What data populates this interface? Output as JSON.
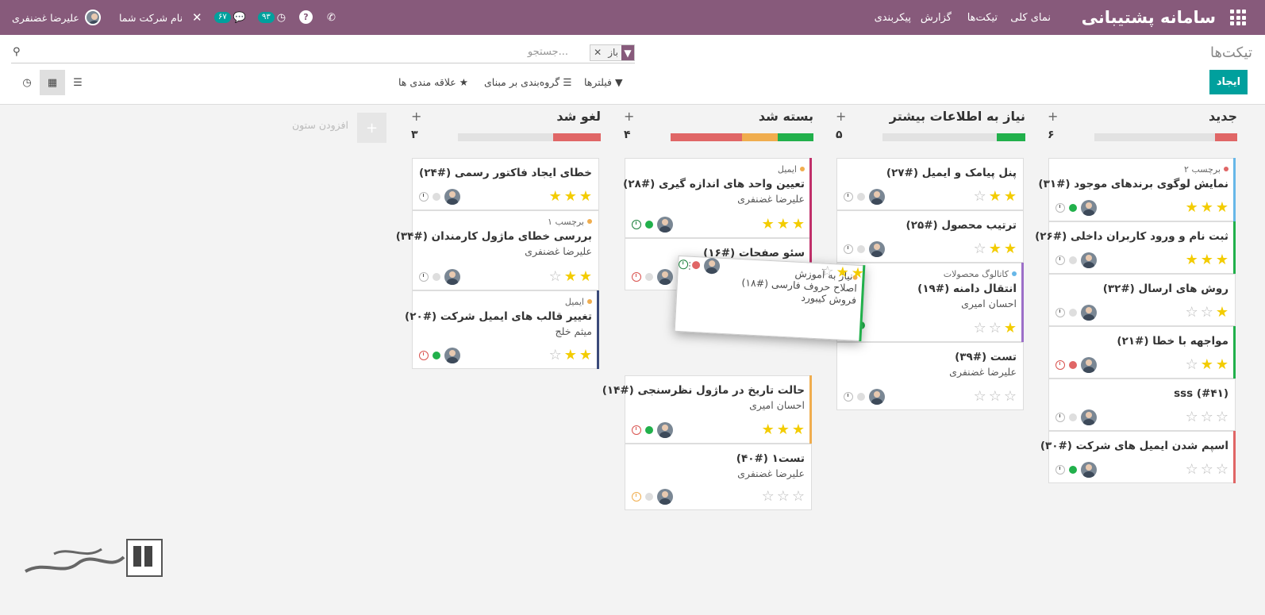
{
  "topbar": {
    "brand": "سامانه پشتیبانی",
    "menu": [
      "نمای کلی",
      "تیکت‌ها",
      "گزارش",
      "پیکربندی"
    ],
    "company": "نام شرکت شما",
    "user": "علیرضا غضنفری",
    "activity_count": "۹۳",
    "messages_count": "۶۷"
  },
  "control": {
    "title": "تیکت‌ها",
    "create": "ایجاد",
    "facet_value": "باز",
    "search_placeholder": "جستجو...",
    "filters": "فیلترها",
    "groupby": "گروه‌بندی بر مبنای",
    "favorites": "علاقه مندی ها"
  },
  "add_column": "افزودن ستون",
  "columns": [
    {
      "title": "جدید",
      "count": "۶"
    },
    {
      "title": "نیاز به اطلاعات بیشتر",
      "count": "۵"
    },
    {
      "title": "بسته شد",
      "count": "۴"
    },
    {
      "title": "لغو شد",
      "count": "۳"
    }
  ],
  "cards": {
    "c31": {
      "tag": "برچسب ۲",
      "title": "نمایش لوگوی برندهای موجود (#۳۱)"
    },
    "c26": {
      "title": "ثبت نام و ورود کاربران داخلی (#۲۶)"
    },
    "c32": {
      "title": "روش های ارسال (#۳۲)"
    },
    "c21": {
      "title": "مواجهه با خطا (#۲۱)"
    },
    "c41": {
      "title": "sss (#۴۱)"
    },
    "c30": {
      "title": "اسپم شدن ایمیل های شرکت (#۳۰)"
    },
    "c27": {
      "title": "پنل پیامک و ایمیل (#۲۷)"
    },
    "c25": {
      "title": "ترتیب محصول (#۲۵)"
    },
    "c19": {
      "tag": "کاتالوگ محصولات",
      "title": "انتقال دامنه (#۱۹)",
      "sub": "احسان امیری"
    },
    "c39": {
      "title": "تست (#۳۹)",
      "sub": "علیرضا غضنفری"
    },
    "c28": {
      "tag": "ایمیل",
      "title": "تعیین واحد های اندازه گیری (#۲۸)",
      "sub": "علیرضا غضنفری"
    },
    "c16": {
      "title": "سئو صفحات (#۱۶)"
    },
    "c14": {
      "title": "حالت تاریخ در ماژول نظرسنجی (#۱۴)",
      "sub": "احسان امیری"
    },
    "c40": {
      "title": "تست۱ (#۴۰)",
      "sub": "علیرضا غضنفری"
    },
    "c24": {
      "title": "خطای ایجاد فاکتور رسمی (#۲۴)"
    },
    "c34": {
      "tag": "برچسب ۱",
      "title": "بررسی خطای ماژول کارمندان (#۳۴)",
      "sub": "علیرضا غضنفری"
    },
    "c20": {
      "tag": "ایمیل",
      "title": "تغییر قالب های ایمیل شرکت (#۲۰)",
      "sub": "میثم خلج"
    },
    "c18": {
      "tag": "نیاز به آموزش",
      "title": "اصلاح حروف فارسی (#۱۸)",
      "sub": "فروش کیبورد"
    }
  },
  "colors": {
    "brand": "#875a7b",
    "accent": "#00a09d",
    "green": "#21b04b",
    "red": "#e06666",
    "orange": "#f0ad4e",
    "star": "#f3cc00"
  }
}
